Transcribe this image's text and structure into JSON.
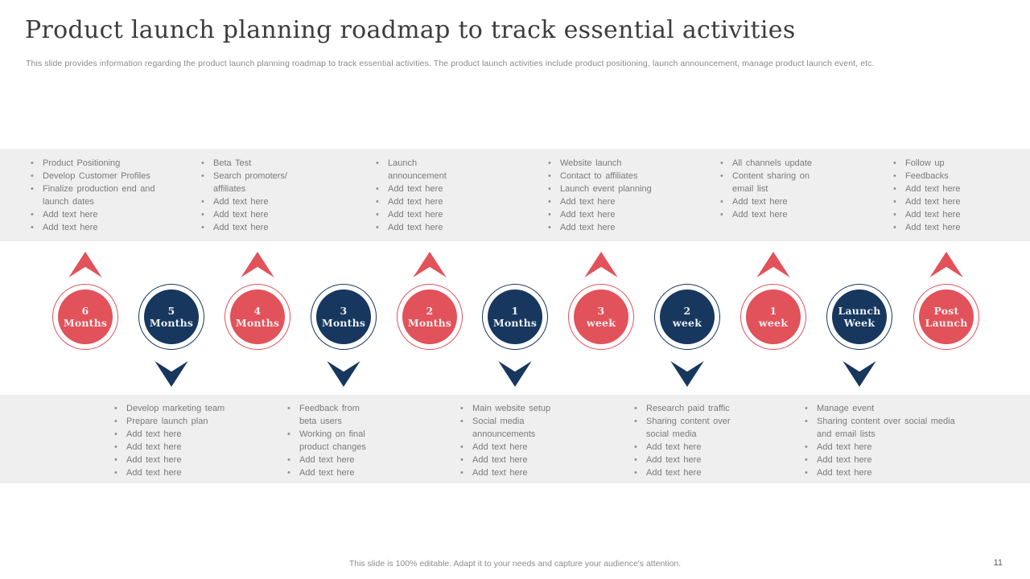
{
  "slide": {
    "title": "Product launch planning roadmap to track essential activities",
    "subtitle": "This slide provides information regarding the product launch planning roadmap to track essential activities. The product launch activities include product positioning, launch announcement, manage product launch event, etc.",
    "footer": "This slide is 100% editable. Adapt it to your needs and capture your audience's attention.",
    "page_number": "11"
  },
  "colors": {
    "red": "#E2525A",
    "navy": "#17375E",
    "red_text": "#FAEDEE",
    "navy_text": "#E8EFF6",
    "band_bg": "#EFEFEF",
    "bullet_text": "#7A7A7A"
  },
  "top_band": {
    "columns": [
      {
        "items": [
          "Product Positioning",
          "Develop Customer Profiles",
          "Finalize production end and launch dates",
          "Add text here",
          "Add text here"
        ]
      },
      {
        "items": [
          "Beta Test",
          "Search promoters/ affiliates",
          "Add text here",
          "Add text here",
          "Add text here"
        ]
      },
      {
        "items": [
          "Launch announcement",
          "Add text here",
          "Add text here",
          "Add text here",
          "Add text here"
        ]
      },
      {
        "items": [
          "Website launch",
          "Contact to affiliates",
          "Launch event planning",
          "Add text here",
          "Add text here",
          "Add text here"
        ]
      },
      {
        "items": [
          "All channels update",
          "Content sharing on email list",
          "Add text here",
          "Add text here"
        ]
      },
      {
        "items": [
          "Follow up",
          "Feedbacks",
          "Add text here",
          "Add text here",
          "Add text here",
          "Add text here"
        ]
      }
    ]
  },
  "timeline": {
    "nodes": [
      {
        "line1": "6",
        "line2": "Months",
        "variant": "red",
        "arrow": "up"
      },
      {
        "line1": "5",
        "line2": "Months",
        "variant": "navy",
        "arrow": "down"
      },
      {
        "line1": "4",
        "line2": "Months",
        "variant": "red",
        "arrow": "up"
      },
      {
        "line1": "3",
        "line2": "Months",
        "variant": "navy",
        "arrow": "down"
      },
      {
        "line1": "2",
        "line2": "Months",
        "variant": "red",
        "arrow": "up"
      },
      {
        "line1": "1",
        "line2": "Months",
        "variant": "navy",
        "arrow": "down"
      },
      {
        "line1": "3",
        "line2": "week",
        "variant": "red",
        "arrow": "up"
      },
      {
        "line1": "2",
        "line2": "week",
        "variant": "navy",
        "arrow": "down"
      },
      {
        "line1": "1",
        "line2": "week",
        "variant": "red",
        "arrow": "up"
      },
      {
        "line1": "Launch",
        "line2": "Week",
        "variant": "navy",
        "arrow": "down"
      },
      {
        "line1": "Post",
        "line2": "Launch",
        "variant": "red",
        "arrow": "up"
      }
    ]
  },
  "bottom_band": {
    "columns": [
      {
        "items": [
          "Develop marketing team",
          "Prepare launch plan",
          "Add text here",
          "Add text here",
          "Add text here",
          "Add text here"
        ]
      },
      {
        "items": [
          "Feedback from beta users",
          "Working on final product changes",
          "Add text here",
          "Add text here"
        ]
      },
      {
        "items": [
          "Main website setup",
          "Social media announcements",
          "Add text here",
          "Add text here",
          "Add text here"
        ]
      },
      {
        "items": [
          "Research paid traffic",
          "Sharing content over social media",
          "Add text here",
          "Add text here",
          "Add text here"
        ]
      },
      {
        "items": [
          "Manage event",
          "Sharing content over social media and email lists",
          "Add text here",
          "Add text here",
          "Add text here"
        ]
      }
    ]
  }
}
